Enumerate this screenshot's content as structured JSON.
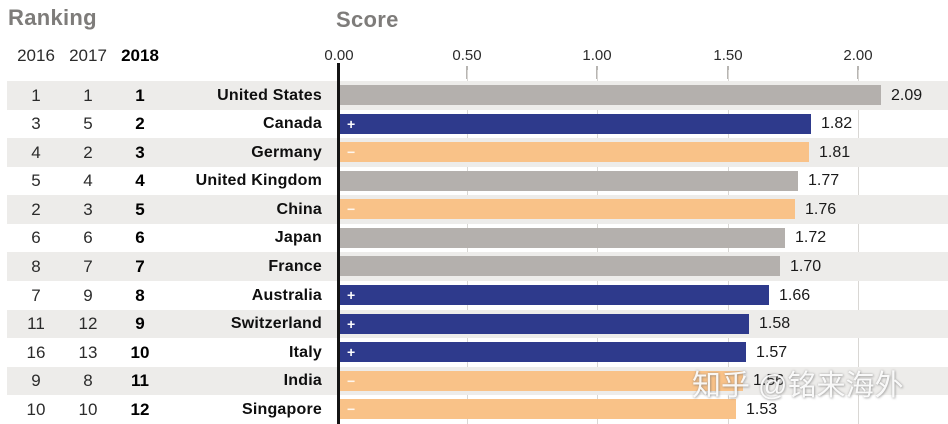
{
  "header": {
    "ranking_label": "Ranking",
    "score_label": "Score",
    "year_columns": [
      "2016",
      "2017",
      "2018"
    ]
  },
  "axis": {
    "tick_labels": [
      "0.00",
      "0.50",
      "1.00",
      "1.50",
      "2.00"
    ],
    "min": 0,
    "max": 2.0,
    "step": 0.5
  },
  "colors": {
    "gray": "#b4b0ad",
    "blue": "#2e3a8c",
    "orange": "#f9c288",
    "row_band": "#edecea",
    "axis_line": "#141414",
    "gridline": "#d9d7d4"
  },
  "watermark": {
    "text": "知乎 @铭来海外"
  },
  "chart_data": {
    "type": "bar",
    "orientation": "horizontal",
    "title": "Score",
    "xlim": [
      0,
      2.0
    ],
    "grid": true,
    "categories": [
      "United States",
      "Canada",
      "Germany",
      "United Kingdom",
      "China",
      "Japan",
      "France",
      "Australia",
      "Switzerland",
      "Italy",
      "India",
      "Singapore"
    ],
    "values": [
      2.09,
      1.82,
      1.81,
      1.77,
      1.76,
      1.72,
      1.7,
      1.66,
      1.58,
      1.57,
      1.56,
      1.53
    ],
    "rows": [
      {
        "rank_2016": "1",
        "rank_2017": "1",
        "rank_2018": "1",
        "country": "United States",
        "score": 2.09,
        "score_label": "2.09",
        "color": "gray",
        "change": ""
      },
      {
        "rank_2016": "3",
        "rank_2017": "5",
        "rank_2018": "2",
        "country": "Canada",
        "score": 1.82,
        "score_label": "1.82",
        "color": "blue",
        "change": "+"
      },
      {
        "rank_2016": "4",
        "rank_2017": "2",
        "rank_2018": "3",
        "country": "Germany",
        "score": 1.81,
        "score_label": "1.81",
        "color": "orange",
        "change": "−"
      },
      {
        "rank_2016": "5",
        "rank_2017": "4",
        "rank_2018": "4",
        "country": "United Kingdom",
        "score": 1.77,
        "score_label": "1.77",
        "color": "gray",
        "change": ""
      },
      {
        "rank_2016": "2",
        "rank_2017": "3",
        "rank_2018": "5",
        "country": "China",
        "score": 1.76,
        "score_label": "1.76",
        "color": "orange",
        "change": "−"
      },
      {
        "rank_2016": "6",
        "rank_2017": "6",
        "rank_2018": "6",
        "country": "Japan",
        "score": 1.72,
        "score_label": "1.72",
        "color": "gray",
        "change": ""
      },
      {
        "rank_2016": "8",
        "rank_2017": "7",
        "rank_2018": "7",
        "country": "France",
        "score": 1.7,
        "score_label": "1.70",
        "color": "gray",
        "change": ""
      },
      {
        "rank_2016": "7",
        "rank_2017": "9",
        "rank_2018": "8",
        "country": "Australia",
        "score": 1.66,
        "score_label": "1.66",
        "color": "blue",
        "change": "+"
      },
      {
        "rank_2016": "11",
        "rank_2017": "12",
        "rank_2018": "9",
        "country": "Switzerland",
        "score": 1.58,
        "score_label": "1.58",
        "color": "blue",
        "change": "+"
      },
      {
        "rank_2016": "16",
        "rank_2017": "13",
        "rank_2018": "10",
        "country": "Italy",
        "score": 1.57,
        "score_label": "1.57",
        "color": "blue",
        "change": "+"
      },
      {
        "rank_2016": "9",
        "rank_2017": "8",
        "rank_2018": "11",
        "country": "India",
        "score": 1.56,
        "score_label": "1.56",
        "color": "orange",
        "change": "−"
      },
      {
        "rank_2016": "10",
        "rank_2017": "10",
        "rank_2018": "12",
        "country": "Singapore",
        "score": 1.53,
        "score_label": "1.53",
        "color": "orange",
        "change": "−"
      }
    ]
  }
}
